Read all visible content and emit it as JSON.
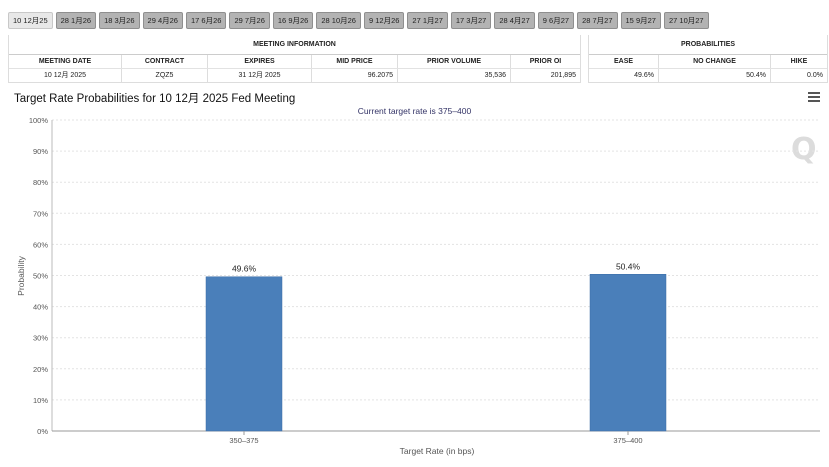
{
  "tabs": [
    "10 12月25",
    "28 1月26",
    "18 3月26",
    "29 4月26",
    "17 6月26",
    "29 7月26",
    "16 9月26",
    "28 10月26",
    "9 12月26",
    "27 1月27",
    "17 3月27",
    "28 4月27",
    "9 6月27",
    "28 7月27",
    "15 9月27",
    "27 10月27"
  ],
  "meeting_info": {
    "title": "MEETING INFORMATION",
    "headers": [
      "MEETING DATE",
      "CONTRACT",
      "EXPIRES",
      "MID PRICE",
      "PRIOR VOLUME",
      "PRIOR OI"
    ],
    "row": [
      "10 12月 2025",
      "ZQZ5",
      "31 12月 2025",
      "96.2075",
      "35,536",
      "201,895"
    ]
  },
  "probabilities": {
    "title": "PROBABILITIES",
    "headers": [
      "EASE",
      "NO CHANGE",
      "HIKE"
    ],
    "row": [
      "49.6%",
      "50.4%",
      "0.0%"
    ]
  },
  "chart": {
    "title": "Target Rate Probabilities for 10 12月 2025 Fed Meeting",
    "subtitle": "Current target rate is 375–400",
    "watermark": "Q",
    "menu_icon": "hamburger-menu-icon",
    "bar_color": "#4a7fba"
  },
  "chart_data": {
    "type": "bar",
    "title": "Target Rate Probabilities for 10 12月 2025 Fed Meeting",
    "subtitle": "Current target rate is 375–400",
    "categories": [
      "350–375",
      "375–400"
    ],
    "values": [
      49.6,
      50.4
    ],
    "data_labels": [
      "49.6%",
      "50.4%"
    ],
    "xlabel": "Target Rate (in bps)",
    "ylabel": "Probability",
    "ylim": [
      0,
      100
    ],
    "yticks": [
      0,
      10,
      20,
      30,
      40,
      50,
      60,
      70,
      80,
      90,
      100
    ],
    "ytick_labels": [
      "0%",
      "10%",
      "20%",
      "30%",
      "40%",
      "50%",
      "60%",
      "70%",
      "80%",
      "90%",
      "100%"
    ],
    "grid": true
  }
}
